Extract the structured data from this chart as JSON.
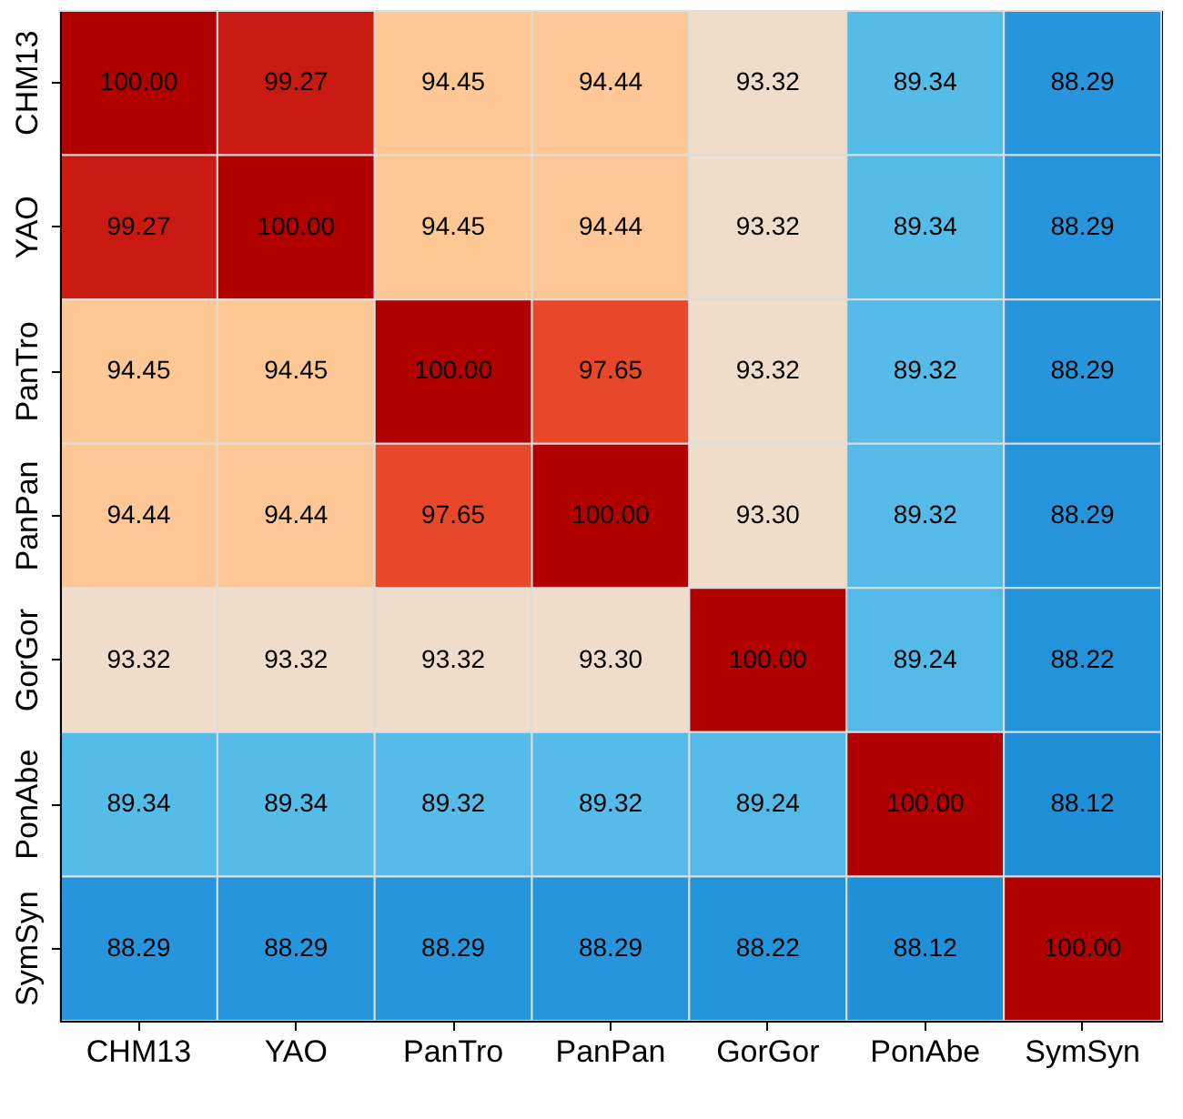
{
  "chart_data": {
    "type": "heatmap",
    "categories": [
      "CHM13",
      "YAO",
      "PanTro",
      "PanPan",
      "GorGor",
      "PonAbe",
      "SymSyn"
    ],
    "y_categories": [
      "CHM13",
      "YAO",
      "PanTro",
      "PanPan",
      "GorGor",
      "PonAbe",
      "SymSyn"
    ],
    "cells": [
      [
        100.0,
        99.27,
        94.45,
        94.44,
        93.32,
        89.34,
        88.29
      ],
      [
        99.27,
        100.0,
        94.45,
        94.44,
        93.32,
        89.34,
        88.29
      ],
      [
        94.45,
        94.45,
        100.0,
        97.65,
        93.32,
        89.32,
        88.29
      ],
      [
        94.44,
        94.44,
        97.65,
        100.0,
        93.3,
        89.32,
        88.29
      ],
      [
        93.32,
        93.32,
        93.32,
        93.3,
        100.0,
        89.24,
        88.22
      ],
      [
        89.34,
        89.34,
        89.32,
        89.32,
        89.24,
        100.0,
        88.12
      ],
      [
        88.29,
        88.29,
        88.29,
        88.29,
        88.22,
        88.12,
        100.0
      ]
    ],
    "cell_labels": [
      [
        "100.00",
        "99.27",
        "94.45",
        "94.44",
        "93.32",
        "89.34",
        "88.29"
      ],
      [
        "99.27",
        "100.00",
        "94.45",
        "94.44",
        "93.32",
        "89.34",
        "88.29"
      ],
      [
        "94.45",
        "94.45",
        "100.00",
        "97.65",
        "93.32",
        "89.32",
        "88.29"
      ],
      [
        "94.44",
        "94.44",
        "97.65",
        "100.00",
        "93.30",
        "89.32",
        "88.29"
      ],
      [
        "93.32",
        "93.32",
        "93.32",
        "93.30",
        "100.00",
        "89.24",
        "88.22"
      ],
      [
        "89.34",
        "89.34",
        "89.32",
        "89.32",
        "89.24",
        "100.00",
        "88.12"
      ],
      [
        "88.29",
        "88.29",
        "88.29",
        "88.29",
        "88.22",
        "88.12",
        "100.00"
      ]
    ]
  }
}
